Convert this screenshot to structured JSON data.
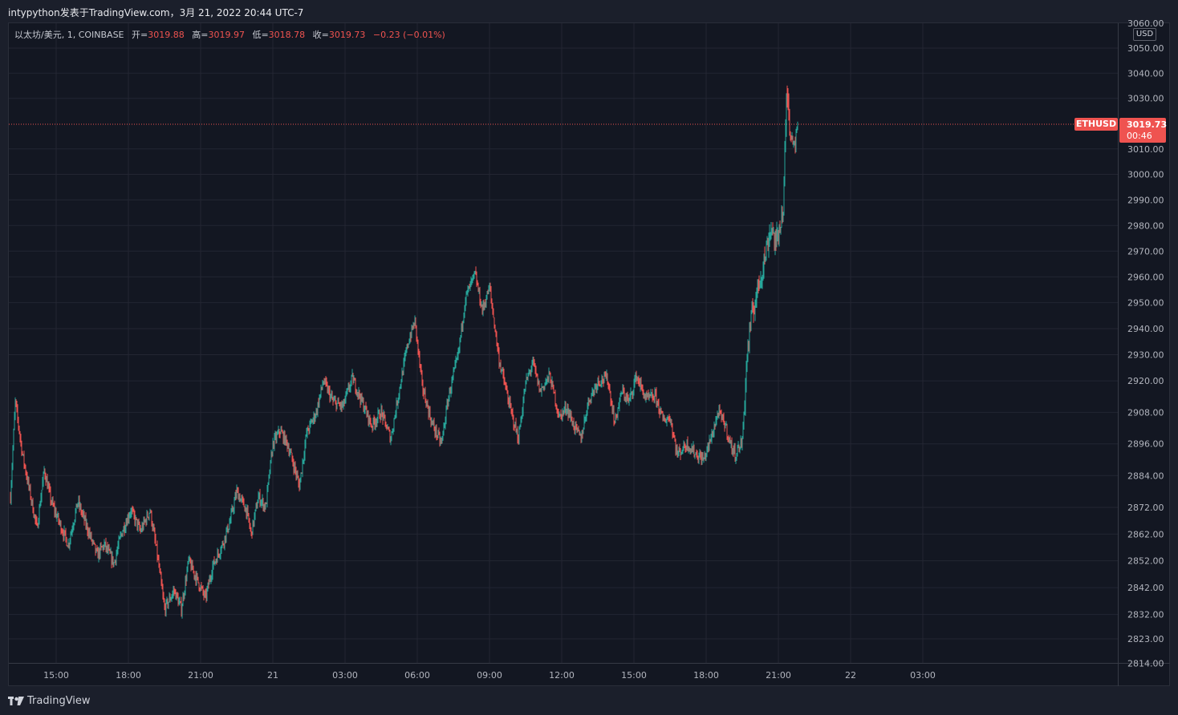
{
  "header": {
    "title": "intypython发表于TradingView.com，3月 21, 2022 20:44 UTC-7"
  },
  "legend": {
    "symbol": "以太坊/美元, 1, COINBASE",
    "open_label": "开=",
    "open": "3019.88",
    "high_label": "高=",
    "high": "3019.97",
    "low_label": "低=",
    "low": "3018.78",
    "close_label": "收=",
    "close": "3019.73",
    "change": "−0.23 (−0.01%)"
  },
  "axis": {
    "currency": "USD",
    "price_ticks": [
      {
        "label": "3060.00",
        "value": 3060
      },
      {
        "label": "3050.00",
        "value": 3050
      },
      {
        "label": "3040.00",
        "value": 3040
      },
      {
        "label": "3030.00",
        "value": 3030
      },
      {
        "label": "3010.00",
        "value": 3010
      },
      {
        "label": "3000.00",
        "value": 3000
      },
      {
        "label": "2990.00",
        "value": 2990
      },
      {
        "label": "2980.00",
        "value": 2980
      },
      {
        "label": "2970.00",
        "value": 2970
      },
      {
        "label": "2960.00",
        "value": 2960
      },
      {
        "label": "2950.00",
        "value": 2950
      },
      {
        "label": "2940.00",
        "value": 2940
      },
      {
        "label": "2930.00",
        "value": 2930
      },
      {
        "label": "2920.00",
        "value": 2920
      },
      {
        "label": "2908.00",
        "value": 2908
      },
      {
        "label": "2896.00",
        "value": 2896
      },
      {
        "label": "2884.00",
        "value": 2884
      },
      {
        "label": "2872.00",
        "value": 2872
      },
      {
        "label": "2862.00",
        "value": 2862
      },
      {
        "label": "2852.00",
        "value": 2852
      },
      {
        "label": "2842.00",
        "value": 2842
      },
      {
        "label": "2832.00",
        "value": 2832
      },
      {
        "label": "2823.00",
        "value": 2823
      },
      {
        "label": "2814.00",
        "value": 2814
      }
    ],
    "time_ticks": [
      {
        "label": "15:00",
        "hour": 15
      },
      {
        "label": "18:00",
        "hour": 18
      },
      {
        "label": "21:00",
        "hour": 21
      },
      {
        "label": "21",
        "hour": 24
      },
      {
        "label": "03:00",
        "hour": 27
      },
      {
        "label": "06:00",
        "hour": 30
      },
      {
        "label": "09:00",
        "hour": 33
      },
      {
        "label": "12:00",
        "hour": 36
      },
      {
        "label": "15:00",
        "hour": 39
      },
      {
        "label": "18:00",
        "hour": 42
      },
      {
        "label": "21:00",
        "hour": 45
      },
      {
        "label": "22",
        "hour": 48
      },
      {
        "label": "03:00",
        "hour": 51
      }
    ]
  },
  "last_price": {
    "symbol": "ETHUSD",
    "price": "3019.73",
    "countdown": "00:46",
    "value": 3019.73
  },
  "colors": {
    "up": "#26a69a",
    "down": "#ef5350",
    "grid": "#232632",
    "background": "#131722"
  },
  "footer": {
    "brand": "TradingView"
  },
  "chart_data": {
    "type": "candlestick",
    "title": "以太坊/美元, 1, COINBASE",
    "interval": "1 minute",
    "x_unit": "hours since 2022-03-20 00:00 (UTC-7)",
    "ylim": [
      2814,
      3060
    ],
    "y_scale": "log",
    "grid": true,
    "close_path": [
      [
        13.1,
        2876
      ],
      [
        13.3,
        2912
      ],
      [
        13.6,
        2892
      ],
      [
        13.9,
        2878
      ],
      [
        14.2,
        2864
      ],
      [
        14.5,
        2886
      ],
      [
        14.8,
        2874
      ],
      [
        15.1,
        2867
      ],
      [
        15.5,
        2858
      ],
      [
        15.9,
        2874
      ],
      [
        16.3,
        2864
      ],
      [
        16.7,
        2854
      ],
      [
        17.0,
        2858
      ],
      [
        17.4,
        2851
      ],
      [
        17.7,
        2862
      ],
      [
        18.1,
        2871
      ],
      [
        18.5,
        2863
      ],
      [
        18.9,
        2871
      ],
      [
        19.2,
        2854
      ],
      [
        19.5,
        2834
      ],
      [
        19.9,
        2841
      ],
      [
        20.2,
        2834
      ],
      [
        20.5,
        2852
      ],
      [
        20.9,
        2844
      ],
      [
        21.2,
        2838
      ],
      [
        21.5,
        2850
      ],
      [
        21.9,
        2858
      ],
      [
        22.2,
        2866
      ],
      [
        22.5,
        2878
      ],
      [
        22.9,
        2871
      ],
      [
        23.1,
        2862
      ],
      [
        23.4,
        2876
      ],
      [
        23.7,
        2872
      ],
      [
        24.0,
        2896
      ],
      [
        24.3,
        2901
      ],
      [
        24.6,
        2896
      ],
      [
        24.9,
        2887
      ],
      [
        25.1,
        2880
      ],
      [
        25.4,
        2900
      ],
      [
        25.8,
        2908
      ],
      [
        26.1,
        2920
      ],
      [
        26.5,
        2912
      ],
      [
        26.9,
        2910
      ],
      [
        27.3,
        2921
      ],
      [
        27.7,
        2912
      ],
      [
        28.1,
        2903
      ],
      [
        28.5,
        2908
      ],
      [
        28.9,
        2898
      ],
      [
        29.2,
        2914
      ],
      [
        29.6,
        2934
      ],
      [
        29.9,
        2943
      ],
      [
        30.2,
        2918
      ],
      [
        30.6,
        2904
      ],
      [
        31.0,
        2896
      ],
      [
        31.3,
        2914
      ],
      [
        31.7,
        2930
      ],
      [
        32.0,
        2952
      ],
      [
        32.4,
        2961
      ],
      [
        32.7,
        2947
      ],
      [
        33.0,
        2956
      ],
      [
        33.4,
        2928
      ],
      [
        33.9,
        2908
      ],
      [
        34.2,
        2898
      ],
      [
        34.5,
        2919
      ],
      [
        34.8,
        2927
      ],
      [
        35.1,
        2916
      ],
      [
        35.5,
        2922
      ],
      [
        35.9,
        2906
      ],
      [
        36.2,
        2910
      ],
      [
        36.5,
        2903
      ],
      [
        36.8,
        2898
      ],
      [
        37.1,
        2912
      ],
      [
        37.5,
        2920
      ],
      [
        37.9,
        2921
      ],
      [
        38.2,
        2904
      ],
      [
        38.5,
        2916
      ],
      [
        38.8,
        2912
      ],
      [
        39.1,
        2922
      ],
      [
        39.5,
        2913
      ],
      [
        39.9,
        2914
      ],
      [
        40.2,
        2905
      ],
      [
        40.5,
        2906
      ],
      [
        40.8,
        2892
      ],
      [
        41.2,
        2896
      ],
      [
        41.6,
        2892
      ],
      [
        41.9,
        2890
      ],
      [
        42.2,
        2898
      ],
      [
        42.5,
        2908
      ],
      [
        42.8,
        2903
      ],
      [
        43.0,
        2896
      ],
      [
        43.2,
        2892
      ],
      [
        43.5,
        2897
      ],
      [
        43.7,
        2930
      ],
      [
        43.9,
        2945
      ],
      [
        44.2,
        2958
      ],
      [
        44.4,
        2966
      ],
      [
        44.7,
        2980
      ],
      [
        44.9,
        2972
      ],
      [
        45.1,
        2983
      ],
      [
        45.2,
        2985
      ],
      [
        45.3,
        3018
      ],
      [
        45.35,
        3034
      ],
      [
        45.5,
        3016
      ],
      [
        45.7,
        3012
      ],
      [
        45.8,
        3019.73
      ]
    ]
  }
}
